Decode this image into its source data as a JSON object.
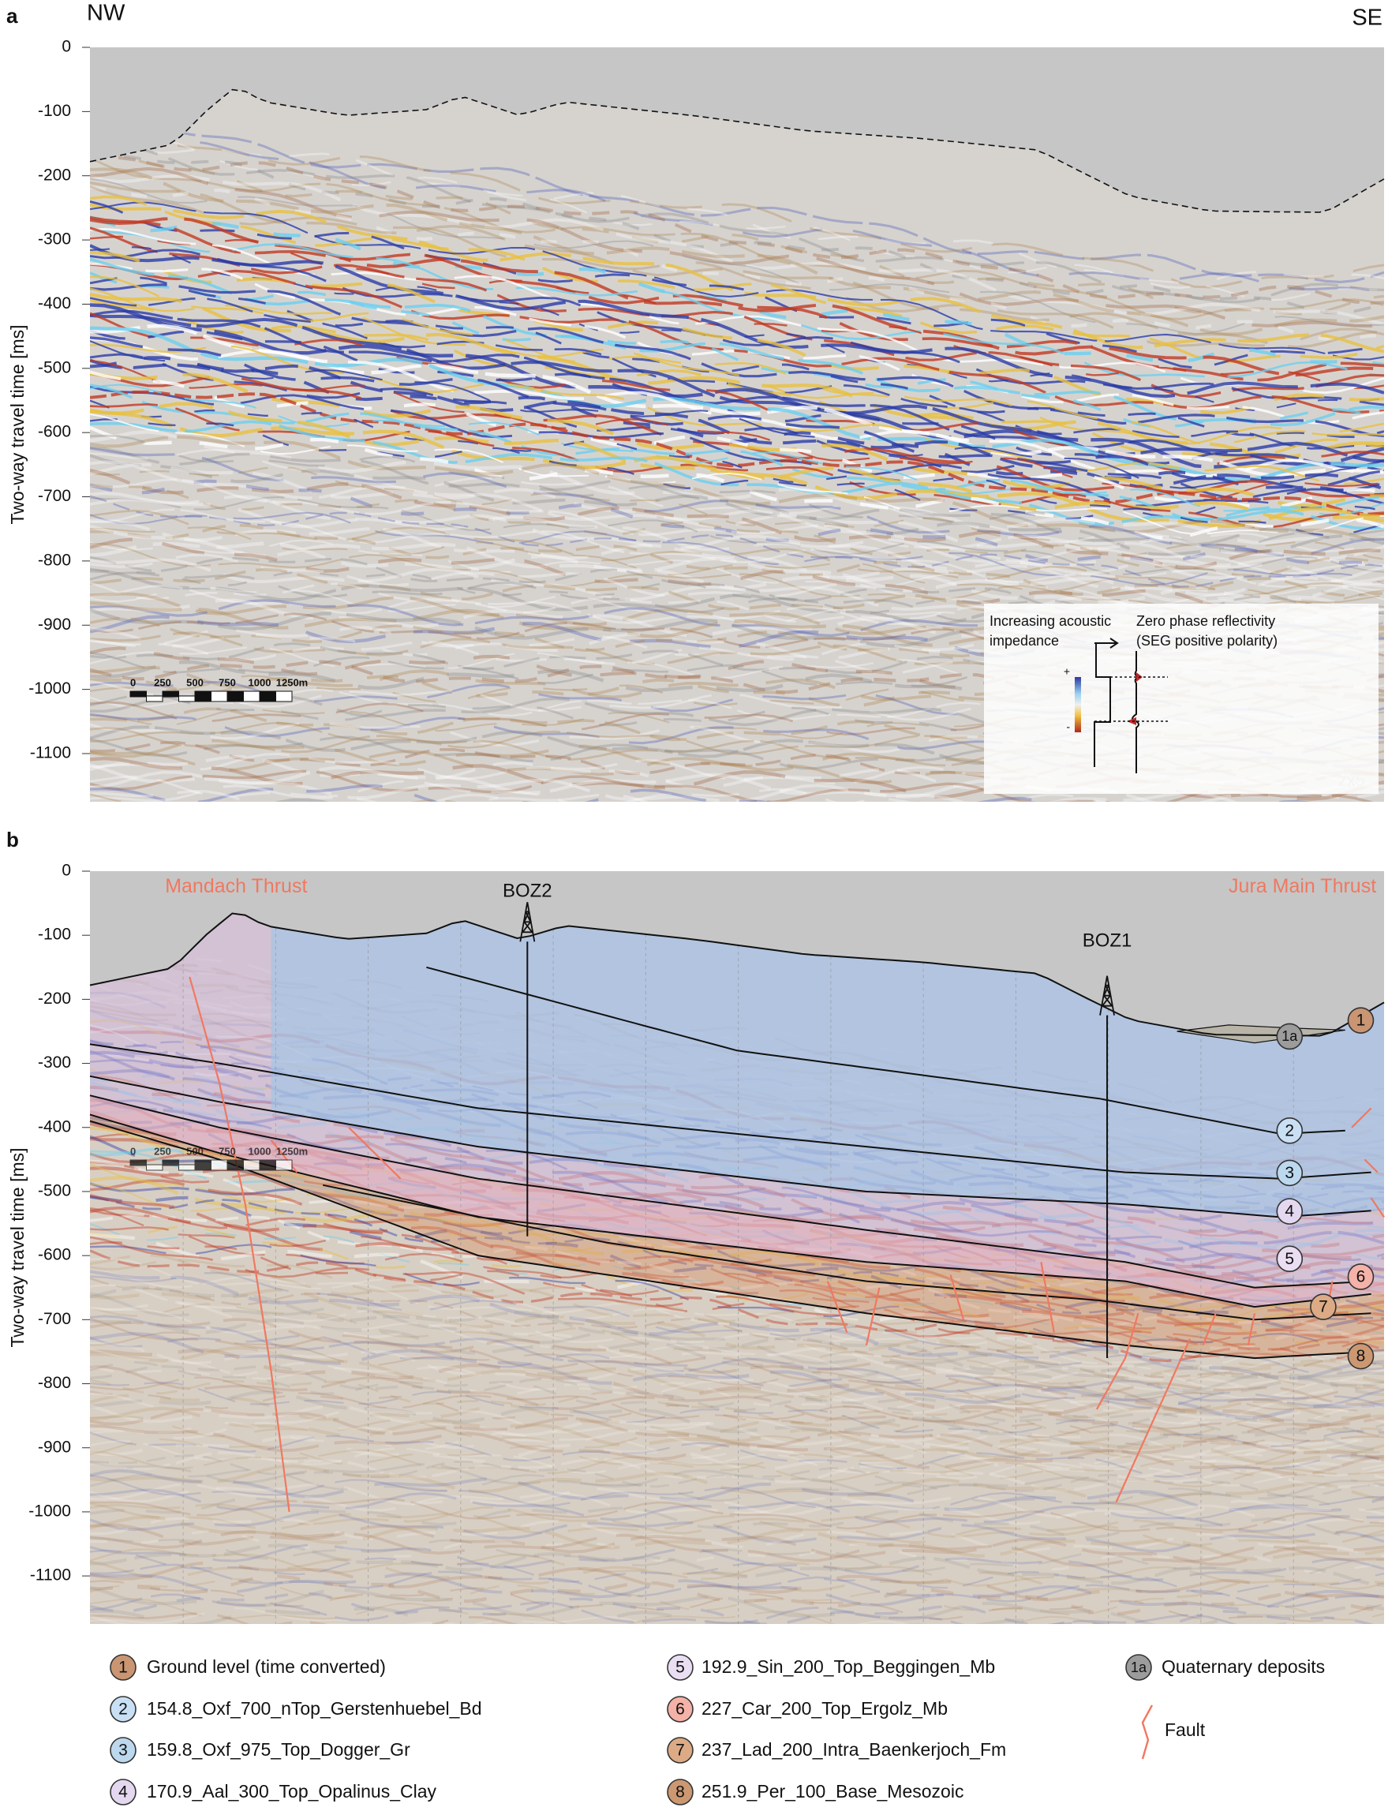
{
  "panels": [
    {
      "label": "a",
      "left_label": "NW",
      "right_label": "SE",
      "y_axis_label": "Two-way travel time [ms]",
      "ylim": [
        0,
        -1175
      ],
      "yticks": [
        0,
        -100,
        -200,
        -300,
        -400,
        -500,
        -600,
        -700,
        -800,
        -900,
        -1000,
        -1100
      ],
      "scale_bar": [
        "0",
        "250",
        "500",
        "750",
        "1000",
        "1250m"
      ],
      "polarity_legend": {
        "impedance_label": [
          "Increasing acoustic",
          "impedance"
        ],
        "reflectivity_label": [
          "Zero phase reflectivity",
          "(SEG positive polarity)"
        ],
        "plus": "+",
        "minus": "-"
      },
      "vertical_exaggeration": "zx5"
    },
    {
      "label": "b",
      "y_axis_label": "Two-way travel time [ms]",
      "ylim": [
        0,
        -1175
      ],
      "yticks": [
        0,
        -100,
        -200,
        -300,
        -400,
        -500,
        -600,
        -700,
        -800,
        -900,
        -1000,
        -1100
      ],
      "scale_bar": [
        "0",
        "250",
        "500",
        "750",
        "1000",
        "1250m"
      ],
      "fault_labels": [
        "Mandach Thrust",
        "Jura Main Thrust"
      ],
      "wells": [
        "BOZ2",
        "BOZ1"
      ],
      "markers": [
        "1a",
        "1",
        "2",
        "3",
        "4",
        "5",
        "6",
        "7",
        "8"
      ]
    }
  ],
  "legend": [
    {
      "marker": "1",
      "label": "Ground level (time converted)",
      "color": "#c99572"
    },
    {
      "marker": "2",
      "label": "154.8_Oxf_700_nTop_Gerstenhuebel_Bd",
      "color": "#c9e0f4"
    },
    {
      "marker": "3",
      "label": "159.8_Oxf_975_Top_Dogger_Gr",
      "color": "#bcd8ee"
    },
    {
      "marker": "4",
      "label": "170.9_Aal_300_Top_Opalinus_Clay",
      "color": "#e4d8f0"
    },
    {
      "marker": "5",
      "label": "192.9_Sin_200_Top_Beggingen_Mb",
      "color": "#e9def2"
    },
    {
      "marker": "6",
      "label": "227_Car_200_Top_Ergolz_Mb",
      "color": "#f4b2a8"
    },
    {
      "marker": "7",
      "label": "237_Lad_200_Intra_Baenkerjoch_Fm",
      "color": "#dcaa85"
    },
    {
      "marker": "8",
      "label": "251.9_Per_100_Base_Mesozoic",
      "color": "#cc9872"
    },
    {
      "marker": "1a",
      "label": "Quaternary deposits",
      "color": "#9c9c9c"
    },
    {
      "label": "Fault",
      "color": "#f07860"
    }
  ]
}
